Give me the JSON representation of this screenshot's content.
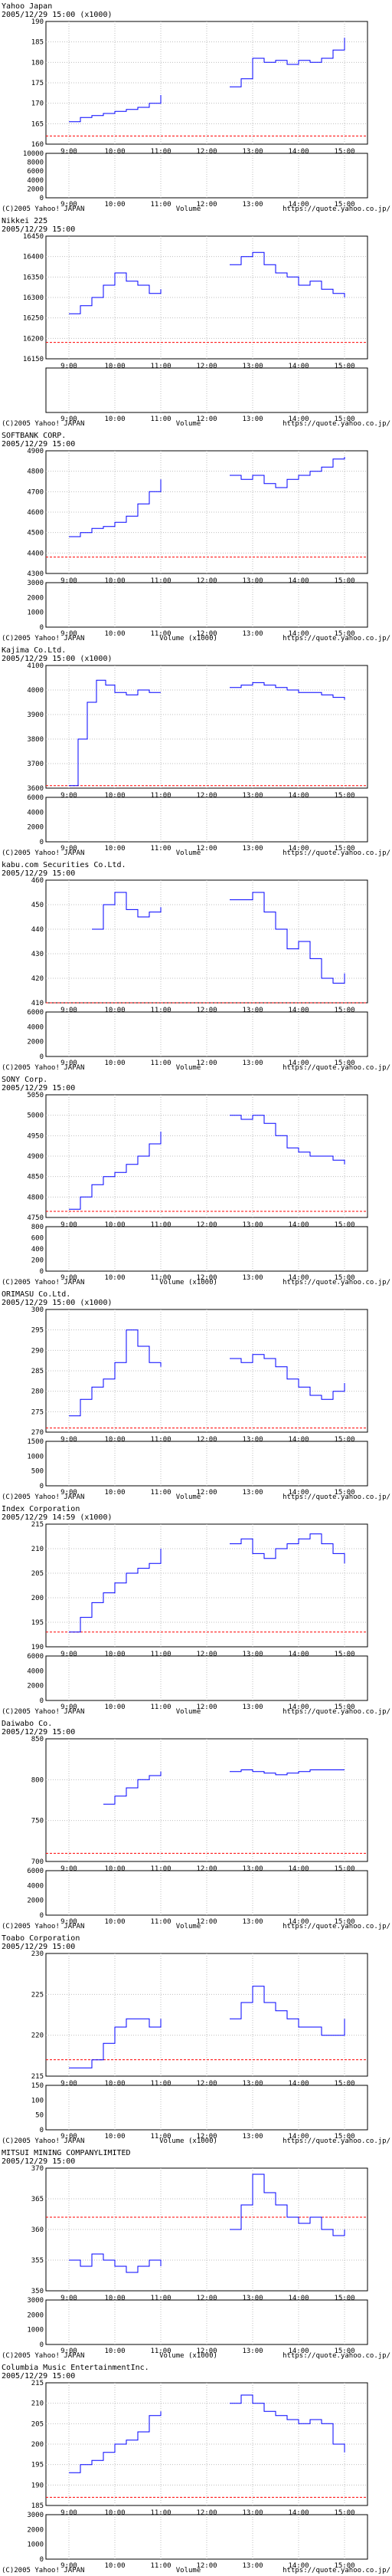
{
  "time_ticks": [
    "9:00",
    "10:00",
    "11:00",
    "12:00",
    "13:00",
    "14:00",
    "15:00"
  ],
  "footer": {
    "copyright": "(C)2005 Yahoo! JAPAN",
    "source": "https://quote.yahoo.co.jp/"
  },
  "colors": {
    "line": "#0000ff",
    "volume": "#0000ff",
    "reference": "#ff0000",
    "grid": "#bfbfbf",
    "frame": "#000000",
    "text": "#000000"
  },
  "chart_data": [
    {
      "type": "line",
      "title": "Yahoo Japan",
      "subtitle": "2005/12/29 15:00 (x1000)",
      "ylim": [
        160,
        190
      ],
      "yticks": [
        160,
        165,
        170,
        175,
        180,
        185,
        190
      ],
      "reference": 162,
      "volume_label": "Volume",
      "volume_ylim": [
        0,
        10000
      ],
      "volume_ticks": [
        0,
        2000,
        4000,
        6000,
        8000,
        10000
      ],
      "am": [
        [
          9.0,
          165.5
        ],
        [
          9.25,
          166.5
        ],
        [
          9.5,
          167
        ],
        [
          9.75,
          167.5
        ],
        [
          10.0,
          168
        ],
        [
          10.25,
          168.5
        ],
        [
          10.5,
          169
        ],
        [
          10.75,
          170
        ],
        [
          11.0,
          172
        ]
      ],
      "pm": [
        [
          12.5,
          174
        ],
        [
          12.75,
          176
        ],
        [
          13.0,
          181
        ],
        [
          13.25,
          180
        ],
        [
          13.5,
          180.5
        ],
        [
          13.75,
          179.5
        ],
        [
          14.0,
          180.5
        ],
        [
          14.25,
          180
        ],
        [
          14.5,
          181
        ],
        [
          14.75,
          183
        ],
        [
          15.0,
          186
        ]
      ]
    },
    {
      "type": "line",
      "title": "Nikkei 225",
      "subtitle": "2005/12/29 15:00",
      "ylim": [
        16150,
        16450
      ],
      "yticks": [
        16150,
        16200,
        16250,
        16300,
        16350,
        16400,
        16450
      ],
      "reference": 16190,
      "volume_label": "Volume",
      "volume_ylim": [
        0,
        0
      ],
      "volume_ticks": [],
      "am": [
        [
          9.0,
          16260
        ],
        [
          9.25,
          16280
        ],
        [
          9.5,
          16300
        ],
        [
          9.75,
          16330
        ],
        [
          10.0,
          16360
        ],
        [
          10.25,
          16340
        ],
        [
          10.5,
          16330
        ],
        [
          10.75,
          16310
        ],
        [
          11.0,
          16320
        ]
      ],
      "pm": [
        [
          12.5,
          16380
        ],
        [
          12.75,
          16400
        ],
        [
          13.0,
          16410
        ],
        [
          13.25,
          16380
        ],
        [
          13.5,
          16360
        ],
        [
          13.75,
          16350
        ],
        [
          14.0,
          16330
        ],
        [
          14.25,
          16340
        ],
        [
          14.5,
          16320
        ],
        [
          14.75,
          16310
        ],
        [
          15.0,
          16300
        ]
      ]
    },
    {
      "type": "line",
      "title": "SOFTBANK CORP.",
      "subtitle": "2005/12/29 15:00",
      "ylim": [
        4300,
        4900
      ],
      "yticks": [
        4300,
        4400,
        4500,
        4600,
        4700,
        4800,
        4900
      ],
      "reference": 4380,
      "volume_label": "Volume (x1000)",
      "volume_ylim": [
        0,
        3000
      ],
      "volume_ticks": [
        0,
        1000,
        2000,
        3000
      ],
      "am": [
        [
          9.0,
          4480
        ],
        [
          9.25,
          4500
        ],
        [
          9.5,
          4520
        ],
        [
          9.75,
          4530
        ],
        [
          10.0,
          4550
        ],
        [
          10.25,
          4580
        ],
        [
          10.5,
          4640
        ],
        [
          10.75,
          4700
        ],
        [
          11.0,
          4760
        ]
      ],
      "pm": [
        [
          12.5,
          4780
        ],
        [
          12.75,
          4760
        ],
        [
          13.0,
          4780
        ],
        [
          13.25,
          4740
        ],
        [
          13.5,
          4720
        ],
        [
          13.75,
          4760
        ],
        [
          14.0,
          4780
        ],
        [
          14.25,
          4800
        ],
        [
          14.5,
          4820
        ],
        [
          14.75,
          4860
        ],
        [
          15.0,
          4870
        ]
      ]
    },
    {
      "type": "line",
      "title": "Kajima Co.Ltd.",
      "subtitle": "2005/12/29 15:00 (x1000)",
      "ylim": [
        3600,
        4100
      ],
      "yticks": [
        3600,
        3700,
        3800,
        3900,
        4000,
        4100
      ],
      "reference": 3610,
      "volume_label": "Volume",
      "volume_ylim": [
        0,
        6000
      ],
      "volume_ticks": [
        0,
        2000,
        4000,
        6000
      ],
      "am": [
        [
          9.0,
          3610
        ],
        [
          9.2,
          3800
        ],
        [
          9.4,
          3950
        ],
        [
          9.6,
          4040
        ],
        [
          9.8,
          4020
        ],
        [
          10.0,
          3990
        ],
        [
          10.25,
          3980
        ],
        [
          10.5,
          4000
        ],
        [
          10.75,
          3990
        ],
        [
          11.0,
          3990
        ]
      ],
      "pm": [
        [
          12.5,
          4010
        ],
        [
          12.75,
          4020
        ],
        [
          13.0,
          4030
        ],
        [
          13.25,
          4020
        ],
        [
          13.5,
          4010
        ],
        [
          13.75,
          4000
        ],
        [
          14.0,
          3990
        ],
        [
          14.25,
          3990
        ],
        [
          14.5,
          3980
        ],
        [
          14.75,
          3970
        ],
        [
          15.0,
          3960
        ]
      ]
    },
    {
      "type": "line",
      "title": "kabu.com Securities Co.Ltd.",
      "subtitle": "2005/12/29 15:00",
      "ylim": [
        410,
        460
      ],
      "yticks": [
        410,
        420,
        430,
        440,
        450,
        460
      ],
      "reference": 410,
      "volume_label": "Volume",
      "volume_ylim": [
        0,
        6000
      ],
      "volume_ticks": [
        0,
        2000,
        4000,
        6000
      ],
      "am": [
        [
          9.5,
          440
        ],
        [
          9.75,
          450
        ],
        [
          10.0,
          455
        ],
        [
          10.25,
          448
        ],
        [
          10.5,
          445
        ],
        [
          10.75,
          447
        ],
        [
          11.0,
          449
        ]
      ],
      "pm": [
        [
          12.5,
          452
        ],
        [
          12.75,
          452
        ],
        [
          13.0,
          455
        ],
        [
          13.25,
          447
        ],
        [
          13.5,
          440
        ],
        [
          13.75,
          432
        ],
        [
          14.0,
          435
        ],
        [
          14.25,
          428
        ],
        [
          14.5,
          420
        ],
        [
          14.75,
          418
        ],
        [
          15.0,
          422
        ]
      ]
    },
    {
      "type": "line",
      "title": "SONY Corp.",
      "subtitle": "2005/12/29 15:00",
      "ylim": [
        4750,
        5050
      ],
      "yticks": [
        4750,
        4800,
        4850,
        4900,
        4950,
        5000,
        5050
      ],
      "reference": 4765,
      "volume_label": "Volume (x1000)",
      "volume_ylim": [
        0,
        800
      ],
      "volume_ticks": [
        0,
        200,
        400,
        600,
        800
      ],
      "am": [
        [
          9.0,
          4770
        ],
        [
          9.25,
          4800
        ],
        [
          9.5,
          4830
        ],
        [
          9.75,
          4850
        ],
        [
          10.0,
          4860
        ],
        [
          10.25,
          4880
        ],
        [
          10.5,
          4900
        ],
        [
          10.75,
          4930
        ],
        [
          11.0,
          4960
        ]
      ],
      "pm": [
        [
          12.5,
          5000
        ],
        [
          12.75,
          4990
        ],
        [
          13.0,
          5000
        ],
        [
          13.25,
          4980
        ],
        [
          13.5,
          4950
        ],
        [
          13.75,
          4920
        ],
        [
          14.0,
          4910
        ],
        [
          14.25,
          4900
        ],
        [
          14.5,
          4900
        ],
        [
          14.75,
          4890
        ],
        [
          15.0,
          4880
        ]
      ]
    },
    {
      "type": "line",
      "title": "ORIMASU Co.Ltd.",
      "subtitle": "2005/12/29 15:00 (x1000)",
      "ylim": [
        270,
        300
      ],
      "yticks": [
        270,
        275,
        280,
        285,
        290,
        295,
        300
      ],
      "reference": 271,
      "volume_label": "Volume",
      "volume_ylim": [
        0,
        1500
      ],
      "volume_ticks": [
        0,
        500,
        1000,
        1500
      ],
      "am": [
        [
          9.0,
          274
        ],
        [
          9.25,
          278
        ],
        [
          9.5,
          281
        ],
        [
          9.75,
          283
        ],
        [
          10.0,
          287
        ],
        [
          10.25,
          295
        ],
        [
          10.5,
          291
        ],
        [
          10.75,
          287
        ],
        [
          11.0,
          286
        ]
      ],
      "pm": [
        [
          12.5,
          288
        ],
        [
          12.75,
          287
        ],
        [
          13.0,
          289
        ],
        [
          13.25,
          288
        ],
        [
          13.5,
          286
        ],
        [
          13.75,
          283
        ],
        [
          14.0,
          281
        ],
        [
          14.25,
          279
        ],
        [
          14.5,
          278
        ],
        [
          14.75,
          280
        ],
        [
          15.0,
          282
        ]
      ]
    },
    {
      "type": "line",
      "title": "Index Corporation",
      "subtitle": "2005/12/29 14:59 (x1000)",
      "ylim": [
        190,
        215
      ],
      "yticks": [
        190,
        195,
        200,
        205,
        210,
        215
      ],
      "reference": 193,
      "volume_label": "Volume",
      "volume_ylim": [
        0,
        6000
      ],
      "volume_ticks": [
        0,
        2000,
        4000,
        6000
      ],
      "am": [
        [
          9.0,
          193
        ],
        [
          9.25,
          196
        ],
        [
          9.5,
          199
        ],
        [
          9.75,
          201
        ],
        [
          10.0,
          203
        ],
        [
          10.25,
          205
        ],
        [
          10.5,
          206
        ],
        [
          10.75,
          207
        ],
        [
          11.0,
          210
        ]
      ],
      "pm": [
        [
          12.5,
          211
        ],
        [
          12.75,
          212
        ],
        [
          13.0,
          209
        ],
        [
          13.25,
          208
        ],
        [
          13.5,
          210
        ],
        [
          13.75,
          211
        ],
        [
          14.0,
          212
        ],
        [
          14.25,
          213
        ],
        [
          14.5,
          211
        ],
        [
          14.75,
          209
        ],
        [
          15.0,
          207
        ]
      ]
    },
    {
      "type": "line",
      "title": "Daiwabo Co.",
      "subtitle": "2005/12/29 15:00",
      "ylim": [
        700,
        850
      ],
      "yticks": [
        700,
        750,
        800,
        850
      ],
      "reference": 710,
      "volume_label": "Volume",
      "volume_ylim": [
        0,
        6000
      ],
      "volume_ticks": [
        0,
        2000,
        4000,
        6000
      ],
      "am": [
        [
          9.75,
          770
        ],
        [
          10.0,
          780
        ],
        [
          10.25,
          790
        ],
        [
          10.5,
          800
        ],
        [
          10.75,
          805
        ],
        [
          11.0,
          810
        ]
      ],
      "pm": [
        [
          12.5,
          810
        ],
        [
          12.75,
          812
        ],
        [
          13.0,
          810
        ],
        [
          13.25,
          808
        ],
        [
          13.5,
          806
        ],
        [
          13.75,
          808
        ],
        [
          14.0,
          810
        ],
        [
          14.25,
          812
        ],
        [
          14.5,
          812
        ],
        [
          14.75,
          812
        ],
        [
          15.0,
          812
        ]
      ]
    },
    {
      "type": "line",
      "title": "Toabo Corporation",
      "subtitle": "2005/12/29 15:00",
      "ylim": [
        215,
        230
      ],
      "yticks": [
        215,
        220,
        225,
        230
      ],
      "reference": 217,
      "volume_label": "Volume (x1000)",
      "volume_ylim": [
        0,
        150
      ],
      "volume_ticks": [
        0,
        50,
        100,
        150
      ],
      "am": [
        [
          9.0,
          216
        ],
        [
          9.5,
          217
        ],
        [
          9.75,
          219
        ],
        [
          10.0,
          221
        ],
        [
          10.25,
          222
        ],
        [
          10.5,
          222
        ],
        [
          10.75,
          221
        ],
        [
          11.0,
          222
        ]
      ],
      "pm": [
        [
          12.5,
          222
        ],
        [
          12.75,
          224
        ],
        [
          13.0,
          226
        ],
        [
          13.25,
          224
        ],
        [
          13.5,
          223
        ],
        [
          13.75,
          222
        ],
        [
          14.0,
          221
        ],
        [
          14.25,
          221
        ],
        [
          14.5,
          220
        ],
        [
          14.75,
          220
        ],
        [
          15.0,
          222
        ]
      ]
    },
    {
      "type": "line",
      "title": "MITSUI MINING COMPANYLIMITED",
      "subtitle": "2005/12/29 15:00",
      "ylim": [
        350,
        370
      ],
      "yticks": [
        350,
        355,
        360,
        365,
        370
      ],
      "reference": 362,
      "volume_label": "Volume (x1000)",
      "volume_ylim": [
        0,
        3000
      ],
      "volume_ticks": [
        0,
        1000,
        2000,
        3000
      ],
      "am": [
        [
          9.0,
          355
        ],
        [
          9.25,
          354
        ],
        [
          9.5,
          356
        ],
        [
          9.75,
          355
        ],
        [
          10.0,
          354
        ],
        [
          10.25,
          353
        ],
        [
          10.5,
          354
        ],
        [
          10.75,
          355
        ],
        [
          11.0,
          354
        ]
      ],
      "pm": [
        [
          12.5,
          360
        ],
        [
          12.75,
          364
        ],
        [
          13.0,
          369
        ],
        [
          13.25,
          366
        ],
        [
          13.5,
          364
        ],
        [
          13.75,
          362
        ],
        [
          14.0,
          361
        ],
        [
          14.25,
          362
        ],
        [
          14.5,
          360
        ],
        [
          14.75,
          359
        ],
        [
          15.0,
          360
        ]
      ]
    },
    {
      "type": "line",
      "title": "Columbia Music EntertainmentInc.",
      "subtitle": "2005/12/29 15:00",
      "ylim": [
        185,
        215
      ],
      "yticks": [
        185,
        190,
        195,
        200,
        205,
        210,
        215
      ],
      "reference": 187,
      "volume_label": "Volume",
      "volume_ylim": [
        0,
        3000
      ],
      "volume_ticks": [
        0,
        1000,
        2000,
        3000
      ],
      "am": [
        [
          9.0,
          193
        ],
        [
          9.25,
          195
        ],
        [
          9.5,
          196
        ],
        [
          9.75,
          198
        ],
        [
          10.0,
          200
        ],
        [
          10.25,
          201
        ],
        [
          10.5,
          203
        ],
        [
          10.75,
          207
        ],
        [
          11.0,
          208
        ]
      ],
      "pm": [
        [
          12.5,
          210
        ],
        [
          12.75,
          212
        ],
        [
          13.0,
          210
        ],
        [
          13.25,
          208
        ],
        [
          13.5,
          207
        ],
        [
          13.75,
          206
        ],
        [
          14.0,
          205
        ],
        [
          14.25,
          206
        ],
        [
          14.5,
          205
        ],
        [
          14.75,
          200
        ],
        [
          15.0,
          198
        ]
      ]
    }
  ]
}
